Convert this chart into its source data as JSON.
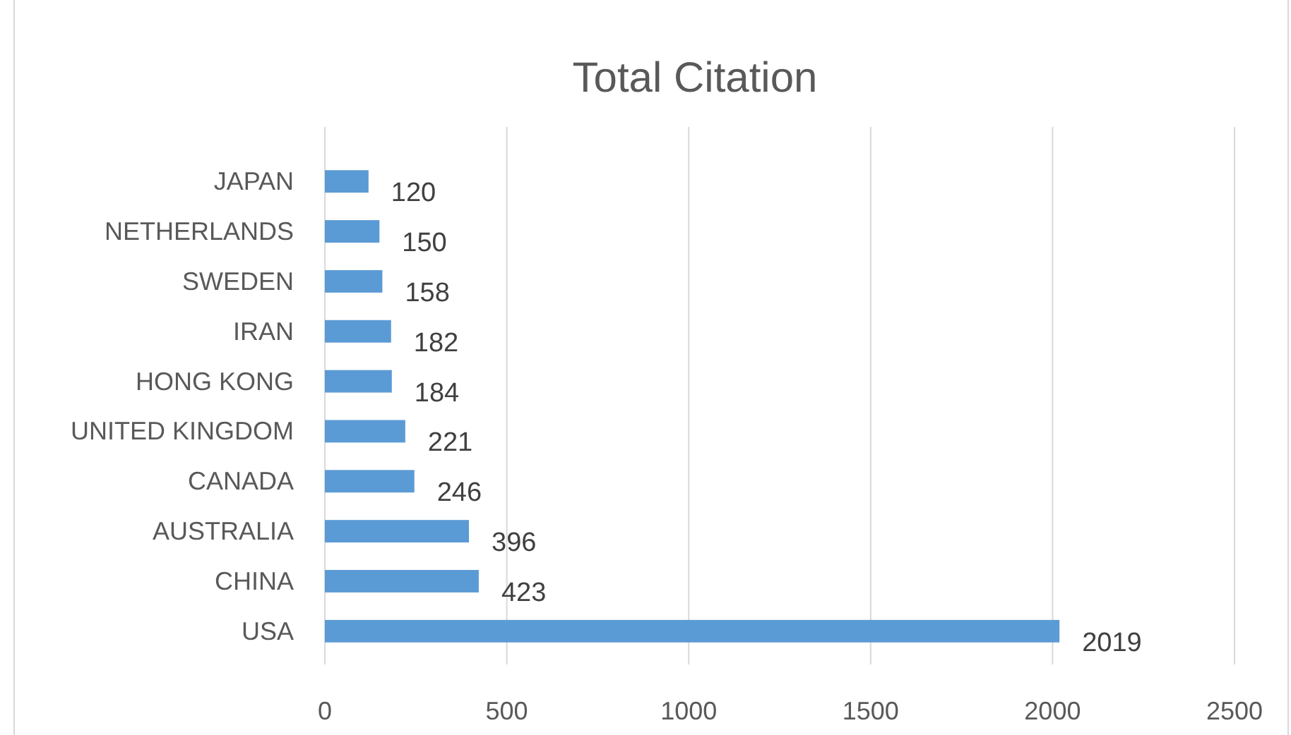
{
  "chart_data": {
    "type": "bar",
    "orientation": "horizontal",
    "title": "Total Citation",
    "categories": [
      "JAPAN",
      "NETHERLANDS",
      "SWEDEN",
      "IRAN",
      "HONG KONG",
      "UNITED KINGDOM",
      "CANADA",
      "AUSTRALIA",
      "CHINA",
      "USA"
    ],
    "values": [
      120,
      150,
      158,
      182,
      184,
      221,
      246,
      396,
      423,
      2019
    ],
    "color": "#5b9bd5",
    "xlim": [
      0,
      2500
    ],
    "xticks": [
      0,
      500,
      1000,
      1500,
      2000,
      2500
    ],
    "grid": "x",
    "data_labels": true
  }
}
